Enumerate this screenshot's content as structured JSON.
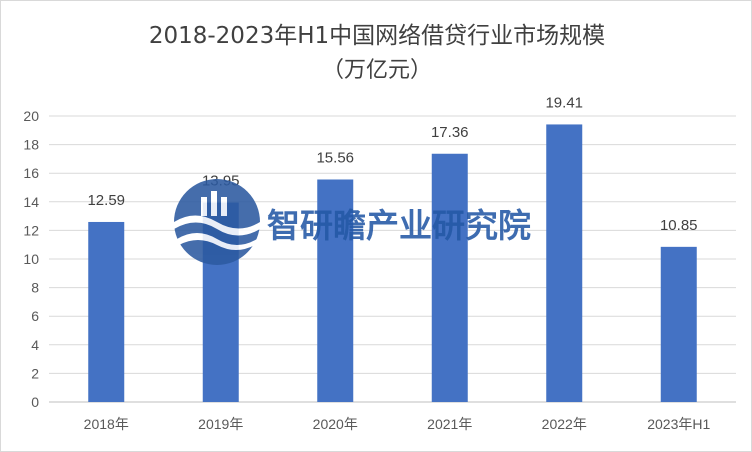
{
  "chart_data": {
    "type": "bar",
    "title": "2018-2023年H1中国网络借贷行业市场规模",
    "subtitle": "（万亿元）",
    "categories": [
      "2018年",
      "2019年",
      "2020年",
      "2021年",
      "2022年",
      "2023年H1"
    ],
    "values": [
      12.59,
      13.95,
      15.56,
      17.36,
      19.41,
      10.85
    ],
    "value_labels": [
      "12.59",
      "13.95",
      "15.56",
      "17.36",
      "19.41",
      "10.85"
    ],
    "y_ticks": [
      "0",
      "2",
      "4",
      "6",
      "8",
      "10",
      "12",
      "14",
      "16",
      "18",
      "20"
    ],
    "ylim": [
      0,
      20
    ],
    "grid": true,
    "legend": "none",
    "bar_color": "#4472c4"
  },
  "watermark": {
    "text": "智研瞻产业研究院",
    "color": "#2458a6",
    "logo_icon": "wave-logo-icon"
  }
}
